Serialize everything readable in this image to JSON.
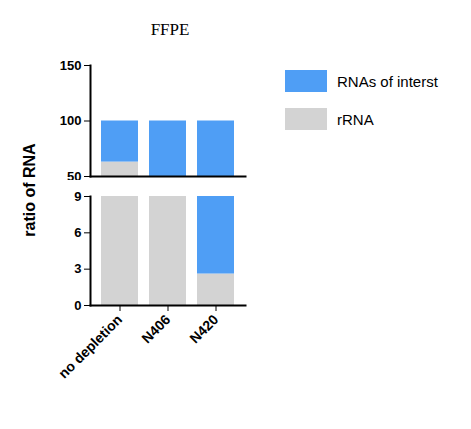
{
  "chart_data": {
    "type": "bar",
    "title": "FFPE",
    "y_label": "ratio of RNA",
    "categories": [
      "no depletion",
      "N406",
      "N420"
    ],
    "series": [
      {
        "name": "rRNA",
        "color": "#d3d3d3",
        "values": [
          63,
          30,
          2.6
        ]
      },
      {
        "name": "RNAs of interst",
        "color": "#4f9ef5",
        "values": [
          37,
          70,
          97.4
        ]
      }
    ],
    "stacked": true,
    "ylim": [
      0,
      150
    ],
    "yticks": [
      0,
      3,
      6,
      9,
      50,
      100,
      150
    ],
    "y_break": [
      9,
      50
    ],
    "legend": "top-right"
  }
}
